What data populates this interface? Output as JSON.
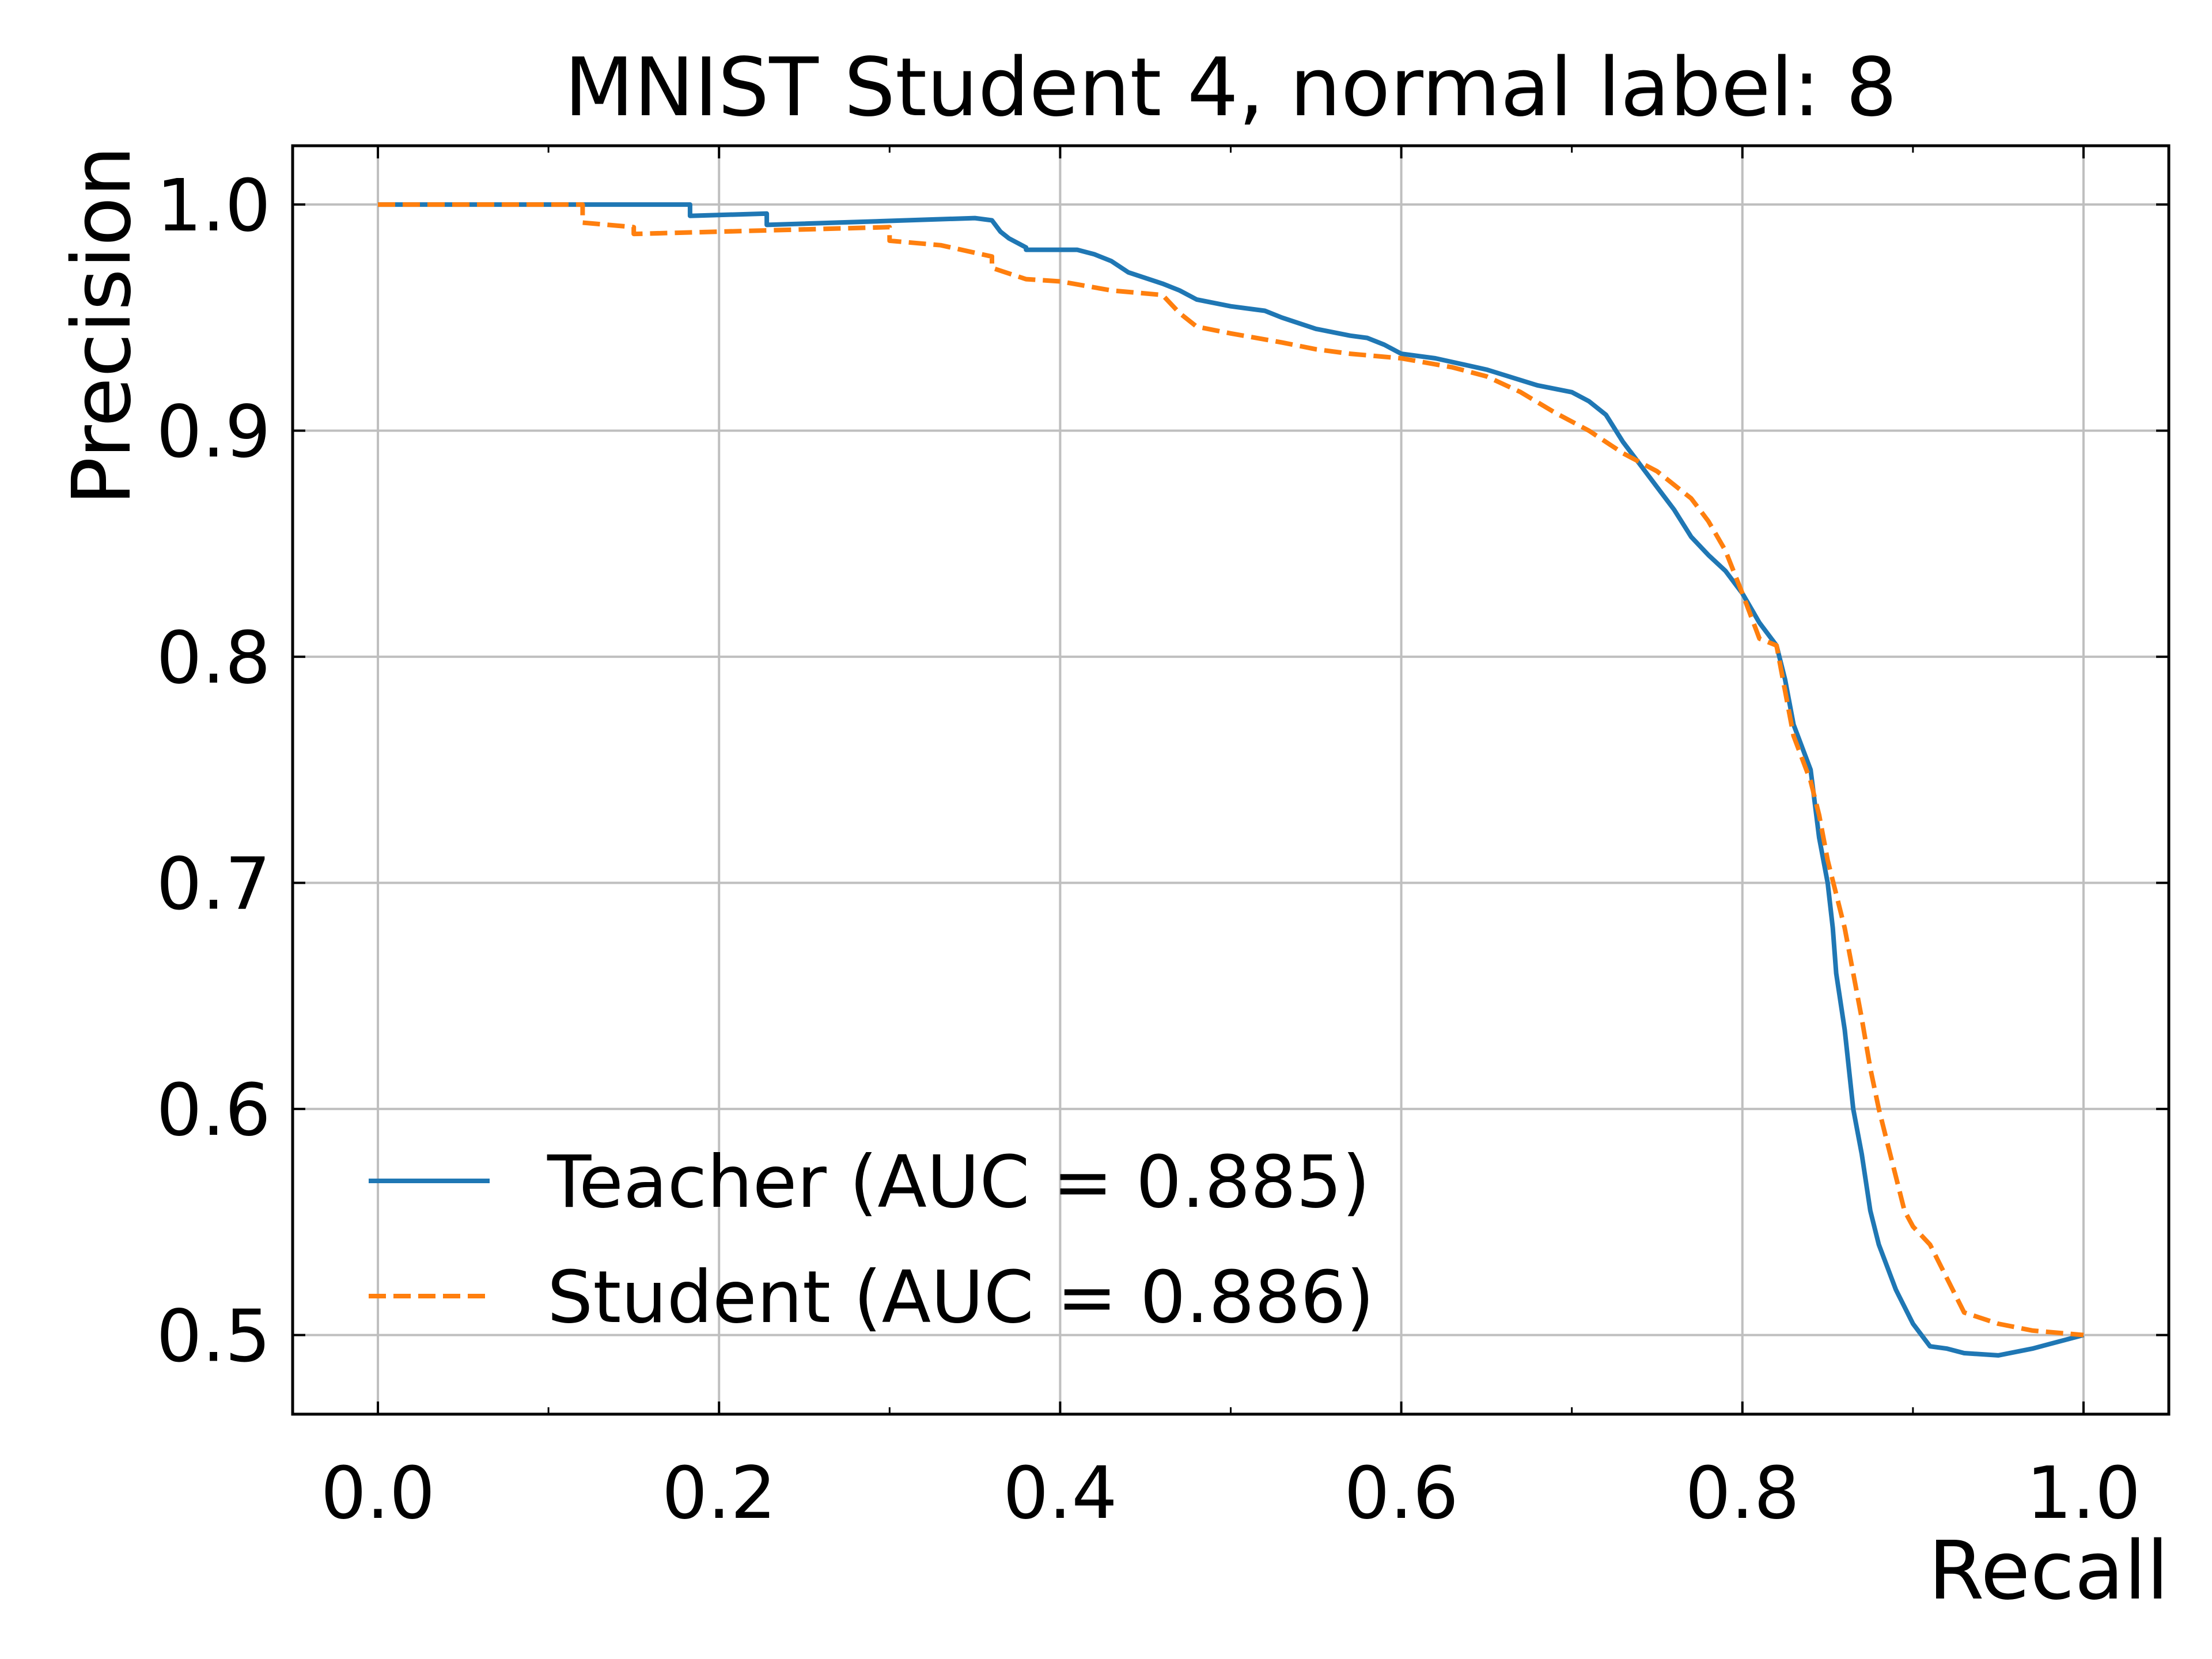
{
  "chart_data": {
    "type": "line",
    "title": "MNIST Student 4, normal label: 8",
    "xlabel": "Recall",
    "ylabel": "Precision",
    "xlim": [
      -0.05,
      1.05
    ],
    "ylim": [
      0.465,
      1.026
    ],
    "xticks": [
      "0.0",
      "0.2",
      "0.4",
      "0.6",
      "0.8",
      "1.0"
    ],
    "yticks": [
      "0.5",
      "0.6",
      "0.7",
      "0.8",
      "0.9",
      "1.0"
    ],
    "grid": true,
    "legend_position": "lower-left",
    "series": [
      {
        "name": "Teacher (AUC = 0.885)",
        "color": "#1f77b4",
        "style": "solid",
        "x": [
          0.0,
          0.183,
          0.183,
          0.228,
          0.228,
          0.35,
          0.36,
          0.365,
          0.37,
          0.38,
          0.38,
          0.41,
          0.42,
          0.43,
          0.44,
          0.46,
          0.47,
          0.48,
          0.5,
          0.52,
          0.53,
          0.55,
          0.57,
          0.58,
          0.59,
          0.6,
          0.62,
          0.65,
          0.68,
          0.7,
          0.71,
          0.72,
          0.73,
          0.74,
          0.75,
          0.76,
          0.77,
          0.78,
          0.79,
          0.8,
          0.81,
          0.82,
          0.825,
          0.83,
          0.84,
          0.845,
          0.85,
          0.853,
          0.855,
          0.86,
          0.865,
          0.87,
          0.875,
          0.88,
          0.89,
          0.9,
          0.91,
          0.92,
          0.93,
          0.95,
          0.97,
          1.0
        ],
        "y": [
          1.0,
          1.0,
          0.995,
          0.996,
          0.991,
          0.994,
          0.993,
          0.988,
          0.985,
          0.981,
          0.98,
          0.98,
          0.978,
          0.975,
          0.97,
          0.965,
          0.962,
          0.958,
          0.955,
          0.953,
          0.95,
          0.945,
          0.942,
          0.941,
          0.938,
          0.934,
          0.932,
          0.927,
          0.92,
          0.917,
          0.913,
          0.907,
          0.895,
          0.885,
          0.875,
          0.865,
          0.853,
          0.845,
          0.838,
          0.828,
          0.815,
          0.805,
          0.79,
          0.77,
          0.75,
          0.72,
          0.7,
          0.68,
          0.66,
          0.635,
          0.6,
          0.58,
          0.555,
          0.54,
          0.52,
          0.505,
          0.495,
          0.494,
          0.492,
          0.491,
          0.494,
          0.5
        ]
      },
      {
        "name": "Student (AUC = 0.886)",
        "color": "#ff7f0e",
        "style": "dashed",
        "x": [
          0.0,
          0.12,
          0.12,
          0.15,
          0.15,
          0.3,
          0.3,
          0.33,
          0.36,
          0.36,
          0.38,
          0.4,
          0.43,
          0.46,
          0.47,
          0.48,
          0.5,
          0.53,
          0.55,
          0.57,
          0.6,
          0.63,
          0.65,
          0.67,
          0.69,
          0.71,
          0.73,
          0.75,
          0.77,
          0.78,
          0.79,
          0.8,
          0.81,
          0.82,
          0.825,
          0.83,
          0.84,
          0.845,
          0.85,
          0.86,
          0.865,
          0.87,
          0.875,
          0.88,
          0.885,
          0.89,
          0.895,
          0.9,
          0.91,
          0.92,
          0.93,
          0.95,
          0.97,
          1.0
        ],
        "y": [
          1.0,
          1.0,
          0.992,
          0.99,
          0.987,
          0.99,
          0.984,
          0.982,
          0.977,
          0.972,
          0.967,
          0.966,
          0.962,
          0.96,
          0.952,
          0.946,
          0.943,
          0.939,
          0.936,
          0.934,
          0.932,
          0.928,
          0.924,
          0.917,
          0.908,
          0.9,
          0.89,
          0.882,
          0.87,
          0.86,
          0.847,
          0.828,
          0.808,
          0.805,
          0.785,
          0.765,
          0.745,
          0.73,
          0.71,
          0.68,
          0.66,
          0.64,
          0.618,
          0.6,
          0.585,
          0.57,
          0.555,
          0.548,
          0.54,
          0.525,
          0.51,
          0.505,
          0.502,
          0.5
        ]
      }
    ]
  }
}
